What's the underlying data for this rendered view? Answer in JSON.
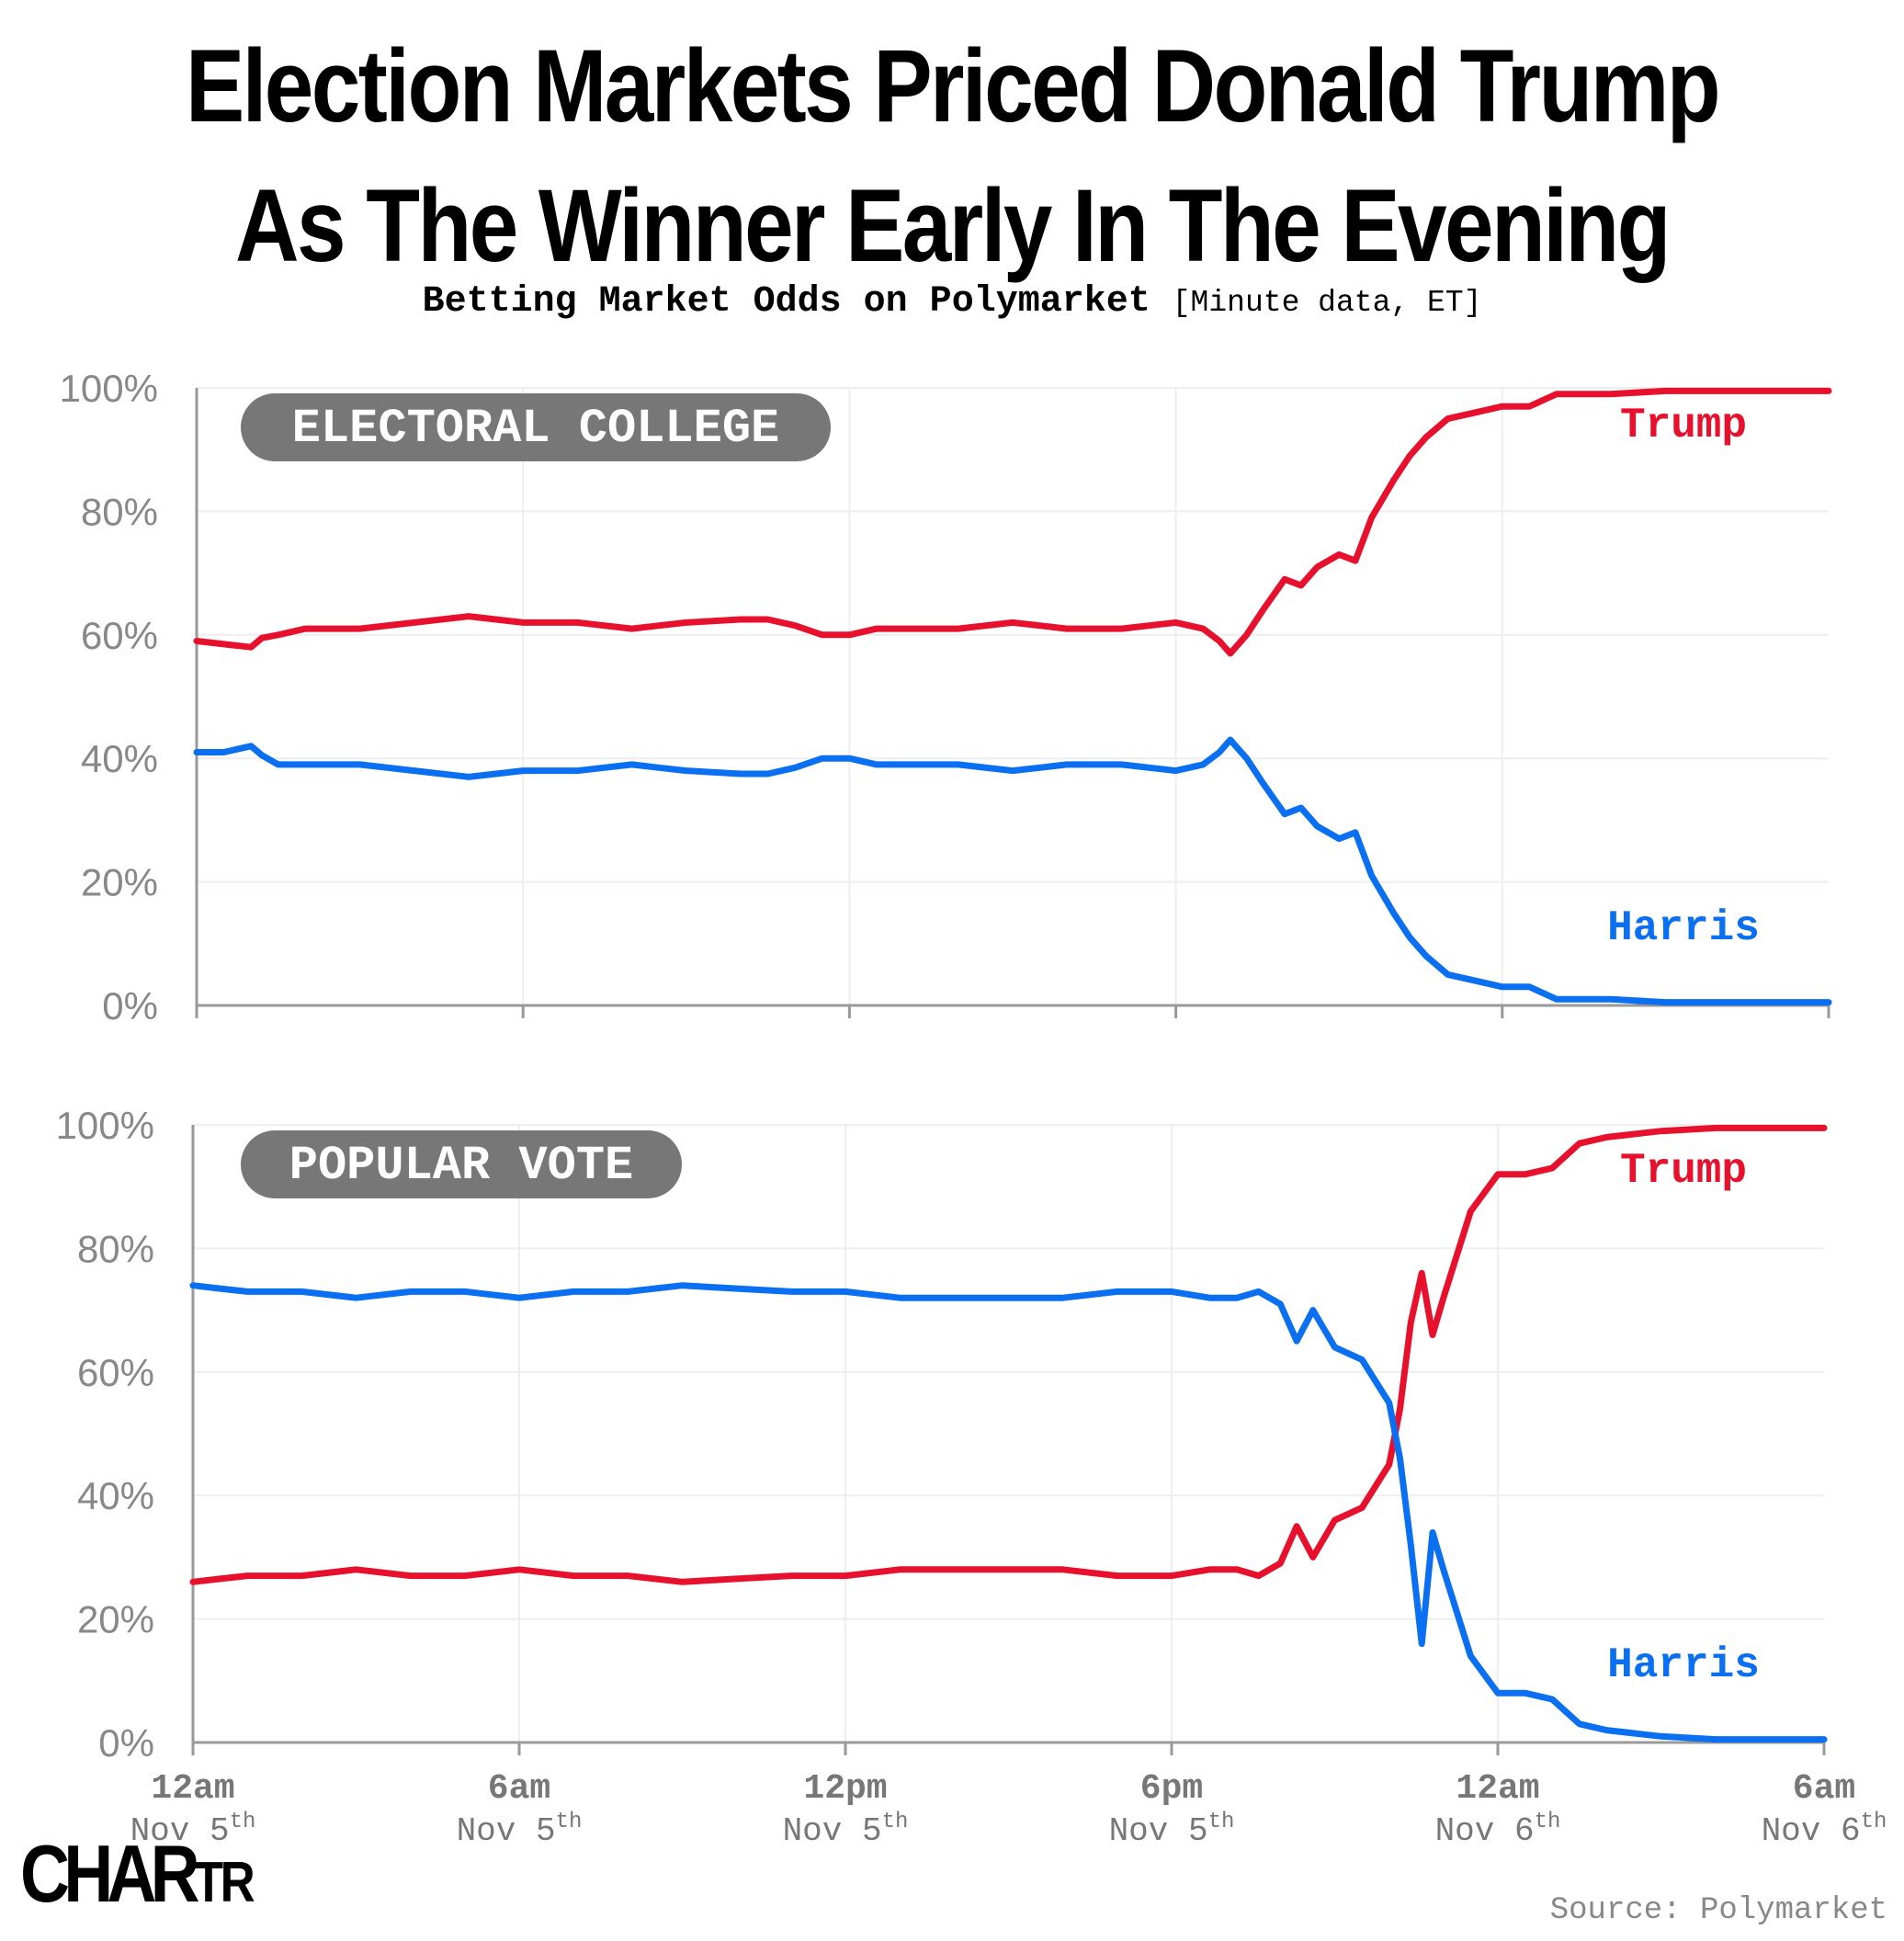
{
  "title_line1": "Election Markets Priced Donald Trump",
  "title_line2": "As The Winner Early In The Evening",
  "subtitle": "Betting Market Odds on Polymarket",
  "subtitle_note": "[Minute data, ET]",
  "source": "Source: Polymarket",
  "logo": {
    "main": "CHAR",
    "small": "TR"
  },
  "colors": {
    "trump": "#e8112d",
    "harris": "#0a6ff0",
    "axis": "#999999",
    "grid": "#eeeeee",
    "pill": "#777777"
  },
  "chart_data": [
    {
      "type": "line",
      "panel": "ELECTORAL COLLEGE",
      "ylim": [
        0,
        100
      ],
      "y_ticks": [
        "100%",
        "80%",
        "60%",
        "40%",
        "20%",
        "0%"
      ],
      "x_range_hours": [
        0,
        30
      ],
      "x_ticks": [
        {
          "time": "12am",
          "date": "Nov 5",
          "sup": "th",
          "hour": 0
        },
        {
          "time": "6am",
          "date": "Nov 5",
          "sup": "th",
          "hour": 6
        },
        {
          "time": "12pm",
          "date": "Nov 5",
          "sup": "th",
          "hour": 12
        },
        {
          "time": "6pm",
          "date": "Nov 5",
          "sup": "th",
          "hour": 18
        },
        {
          "time": "12am",
          "date": "Nov 6",
          "sup": "th",
          "hour": 24
        },
        {
          "time": "6am",
          "date": "Nov 6",
          "sup": "th",
          "hour": 30
        }
      ],
      "series": [
        {
          "name": "Trump",
          "hours": [
            0,
            0.5,
            1,
            1.2,
            1.5,
            2,
            3,
            4,
            5,
            5.5,
            6,
            7,
            8,
            8.5,
            9,
            10,
            10.5,
            11,
            11.5,
            12,
            12.5,
            13,
            14,
            15,
            16,
            17,
            18,
            18.5,
            18.8,
            19,
            19.3,
            19.6,
            20,
            20.3,
            20.6,
            21,
            21.3,
            21.6,
            22,
            22.3,
            22.6,
            23,
            23.5,
            24,
            24.5,
            25,
            26,
            27,
            28,
            29,
            30
          ],
          "values": [
            59,
            58.5,
            58,
            59.5,
            60,
            61,
            61,
            62,
            63,
            62.5,
            62,
            62,
            61,
            61.5,
            62,
            62.5,
            62.5,
            61.5,
            60,
            60,
            61,
            61,
            61,
            62,
            61,
            61,
            62,
            61,
            59,
            57,
            60,
            64,
            69,
            68,
            71,
            73,
            72,
            79,
            85,
            89,
            92,
            95,
            96,
            97,
            97,
            99,
            99,
            99.5,
            99.5,
            99.5,
            99.5
          ]
        },
        {
          "name": "Harris",
          "hours": [
            0,
            0.5,
            1,
            1.2,
            1.5,
            2,
            3,
            4,
            5,
            5.5,
            6,
            7,
            8,
            8.5,
            9,
            10,
            10.5,
            11,
            11.5,
            12,
            12.5,
            13,
            14,
            15,
            16,
            17,
            18,
            18.5,
            18.8,
            19,
            19.3,
            19.6,
            20,
            20.3,
            20.6,
            21,
            21.3,
            21.6,
            22,
            22.3,
            22.6,
            23,
            23.5,
            24,
            24.5,
            25,
            26,
            27,
            28,
            29,
            30
          ],
          "values": [
            41,
            41,
            42,
            40.5,
            39,
            39,
            39,
            38,
            37,
            37.5,
            38,
            38,
            39,
            38.5,
            38,
            37.5,
            37.5,
            38.5,
            40,
            40,
            39,
            39,
            39,
            38,
            39,
            39,
            38,
            39,
            41,
            43,
            40,
            36,
            31,
            32,
            29,
            27,
            28,
            21,
            15,
            11,
            8,
            5,
            4,
            3,
            3,
            1,
            1,
            0.5,
            0.5,
            0.5,
            0.5
          ]
        }
      ]
    },
    {
      "type": "line",
      "panel": "POPULAR VOTE",
      "ylim": [
        0,
        100
      ],
      "y_ticks": [
        "100%",
        "80%",
        "60%",
        "40%",
        "20%",
        "0%"
      ],
      "x_range_hours": [
        0,
        30
      ],
      "x_ticks": [
        {
          "time": "12am",
          "date": "Nov 5",
          "sup": "th",
          "hour": 0
        },
        {
          "time": "6am",
          "date": "Nov 5",
          "sup": "th",
          "hour": 6
        },
        {
          "time": "12pm",
          "date": "Nov 5",
          "sup": "th",
          "hour": 12
        },
        {
          "time": "6pm",
          "date": "Nov 5",
          "sup": "th",
          "hour": 18
        },
        {
          "time": "12am",
          "date": "Nov 6",
          "sup": "th",
          "hour": 24
        },
        {
          "time": "6am",
          "date": "Nov 6",
          "sup": "th",
          "hour": 30
        }
      ],
      "series": [
        {
          "name": "Trump",
          "hours": [
            0,
            0.5,
            1,
            1.5,
            2,
            3,
            4,
            5,
            6,
            7,
            8,
            9,
            10,
            11,
            12,
            13,
            14,
            15,
            16,
            17,
            18,
            18.7,
            19.2,
            19.6,
            20,
            20.3,
            20.6,
            21,
            21.5,
            22,
            22.2,
            22.4,
            22.6,
            22.8,
            23,
            23.5,
            24,
            24.5,
            25,
            25.5,
            26,
            27,
            28,
            29,
            30
          ],
          "values": [
            26,
            26.5,
            27,
            27,
            27,
            28,
            27,
            27,
            28,
            27,
            27,
            26,
            26.5,
            27,
            27,
            28,
            28,
            28,
            28,
            27,
            27,
            28,
            28,
            27,
            29,
            35,
            30,
            36,
            38,
            45,
            54,
            68,
            76,
            66,
            72,
            86,
            92,
            92,
            93,
            97,
            98,
            99,
            99.5,
            99.5,
            99.5
          ]
        },
        {
          "name": "Harris",
          "hours": [
            0,
            0.5,
            1,
            1.5,
            2,
            3,
            4,
            5,
            6,
            7,
            8,
            9,
            10,
            11,
            12,
            13,
            14,
            15,
            16,
            17,
            18,
            18.7,
            19.2,
            19.6,
            20,
            20.3,
            20.6,
            21,
            21.5,
            22,
            22.2,
            22.4,
            22.6,
            22.8,
            23,
            23.5,
            24,
            24.5,
            25,
            25.5,
            26,
            27,
            28,
            29,
            30
          ],
          "values": [
            74,
            73.5,
            73,
            73,
            73,
            72,
            73,
            73,
            72,
            73,
            73,
            74,
            73.5,
            73,
            73,
            72,
            72,
            72,
            72,
            73,
            73,
            72,
            72,
            73,
            71,
            65,
            70,
            64,
            62,
            55,
            46,
            32,
            16,
            34,
            28,
            14,
            8,
            8,
            7,
            3,
            2,
            1,
            0.5,
            0.5,
            0.5
          ]
        }
      ]
    }
  ]
}
